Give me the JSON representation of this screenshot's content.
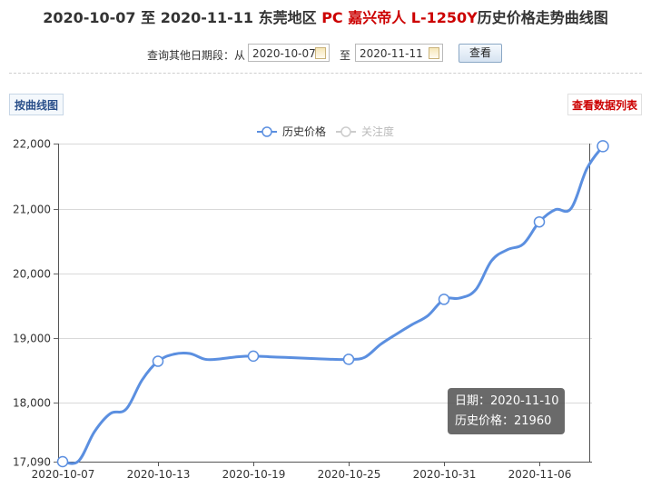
{
  "title": {
    "part1": "2020-10-07 至 2020-11-11 东莞地区 ",
    "part2": "PC 嘉兴帝人 L-1250Y",
    "part3": "历史价格走势曲线图"
  },
  "query": {
    "label": "查询其他日期段：从",
    "from": "2020-10-07",
    "to_label": "至",
    "to": "2020-11-11",
    "button": "查看"
  },
  "tabs": {
    "curve": "按曲线图",
    "list": "查看数据列表"
  },
  "legend": {
    "series1": "历史价格",
    "series2": "关注度"
  },
  "tooltip": {
    "date": "日期：2020-11-10",
    "price": "历史价格：21960"
  },
  "colors": {
    "line": "#5b8fe0",
    "title_accent": "#cc0000",
    "legend_inactive": "#cccccc"
  },
  "chart_data": {
    "type": "line",
    "ylim": [
      17090,
      22000
    ],
    "yticks": [
      17090,
      18000,
      19000,
      20000,
      21000,
      22000
    ],
    "ytick_labels": [
      "17,090",
      "18,000",
      "19,000",
      "20,000",
      "21,000",
      "22,000"
    ],
    "xlim_days": [
      0,
      34
    ],
    "xticks": [
      {
        "day": 0,
        "label": "2020-10-07"
      },
      {
        "day": 6,
        "label": "2020-10-13"
      },
      {
        "day": 12,
        "label": "2020-10-19"
      },
      {
        "day": 18,
        "label": "2020-10-25"
      },
      {
        "day": 24,
        "label": "2020-10-31"
      },
      {
        "day": 30,
        "label": "2020-11-06"
      }
    ],
    "series": [
      {
        "name": "历史价格",
        "points": [
          {
            "day": 0,
            "value": 17090
          },
          {
            "day": 1,
            "value": 17100
          },
          {
            "day": 2,
            "value": 17550
          },
          {
            "day": 3,
            "value": 17830
          },
          {
            "day": 4,
            "value": 17900
          },
          {
            "day": 5,
            "value": 18350
          },
          {
            "day": 6,
            "value": 18640
          },
          {
            "day": 7,
            "value": 18750
          },
          {
            "day": 8,
            "value": 18760
          },
          {
            "day": 9,
            "value": 18670
          },
          {
            "day": 10,
            "value": 18680
          },
          {
            "day": 11,
            "value": 18710
          },
          {
            "day": 12,
            "value": 18720
          },
          {
            "day": 13,
            "value": 18710
          },
          {
            "day": 14,
            "value": 18700
          },
          {
            "day": 15,
            "value": 18690
          },
          {
            "day": 16,
            "value": 18680
          },
          {
            "day": 17,
            "value": 18670
          },
          {
            "day": 18,
            "value": 18670
          },
          {
            "day": 19,
            "value": 18700
          },
          {
            "day": 20,
            "value": 18900
          },
          {
            "day": 21,
            "value": 19060
          },
          {
            "day": 22,
            "value": 19210
          },
          {
            "day": 23,
            "value": 19350
          },
          {
            "day": 24,
            "value": 19600
          },
          {
            "day": 25,
            "value": 19620
          },
          {
            "day": 26,
            "value": 19750
          },
          {
            "day": 27,
            "value": 20200
          },
          {
            "day": 28,
            "value": 20370
          },
          {
            "day": 29,
            "value": 20460
          },
          {
            "day": 30,
            "value": 20800
          },
          {
            "day": 31,
            "value": 20990
          },
          {
            "day": 32,
            "value": 21010
          },
          {
            "day": 33,
            "value": 21620
          },
          {
            "day": 34,
            "value": 21960
          }
        ],
        "marked_days": [
          0,
          6,
          12,
          18,
          24,
          30,
          34
        ]
      }
    ]
  }
}
